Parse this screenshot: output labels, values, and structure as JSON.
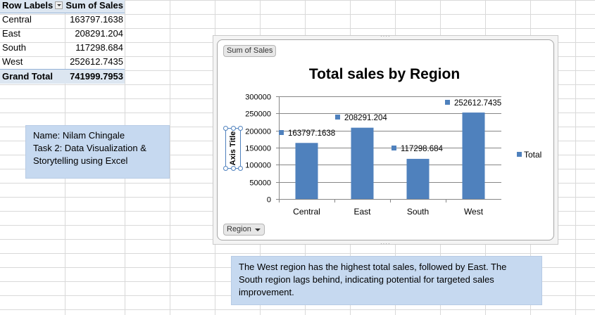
{
  "pivot": {
    "header": {
      "label": "Row Labels",
      "value": "Sum of Sales"
    },
    "rows": [
      {
        "label": "Central",
        "value": "163797.1638"
      },
      {
        "label": "East",
        "value": "208291.204"
      },
      {
        "label": "South",
        "value": "117298.684"
      },
      {
        "label": "West",
        "value": "252612.7435"
      }
    ],
    "total": {
      "label": "Grand Total",
      "value": "741999.7953"
    }
  },
  "notes": {
    "author": {
      "line1": "Name: Nilam Chingale",
      "line2": "Task 2: Data Visualization &",
      "line3": "Storytelling using Excel"
    },
    "insight": {
      "line1": "The West region has the highest total sales, followed by East. The",
      "line2": "South region lags behind, indicating potential for targeted sales",
      "line3": "improvement."
    }
  },
  "chart": {
    "field_button": "Sum of Sales",
    "axis_field_button": "Region",
    "y_axis_title": "Axis Title"
  },
  "colors": {
    "bar": "#4f81bd",
    "note_bg": "#c6d9f0",
    "pivot_header_bg": "#dce6f1"
  },
  "chart_data": {
    "type": "bar",
    "title": "Total sales by Region",
    "categories": [
      "Central",
      "East",
      "South",
      "West"
    ],
    "series": [
      {
        "name": "Total",
        "values": [
          163797.1638,
          208291.204,
          117298.684,
          252612.7435
        ]
      }
    ],
    "data_labels": [
      "163797.1638",
      "208291.204",
      "117298.684",
      "252612.7435"
    ],
    "ylabel": "Axis Title",
    "ylim": [
      0,
      300000
    ],
    "yticks": [
      0,
      50000,
      100000,
      150000,
      200000,
      250000,
      300000
    ],
    "ytick_labels": [
      "0",
      "50000",
      "100000",
      "150000",
      "200000",
      "250000",
      "300000"
    ],
    "grid": true,
    "legend": "right"
  }
}
